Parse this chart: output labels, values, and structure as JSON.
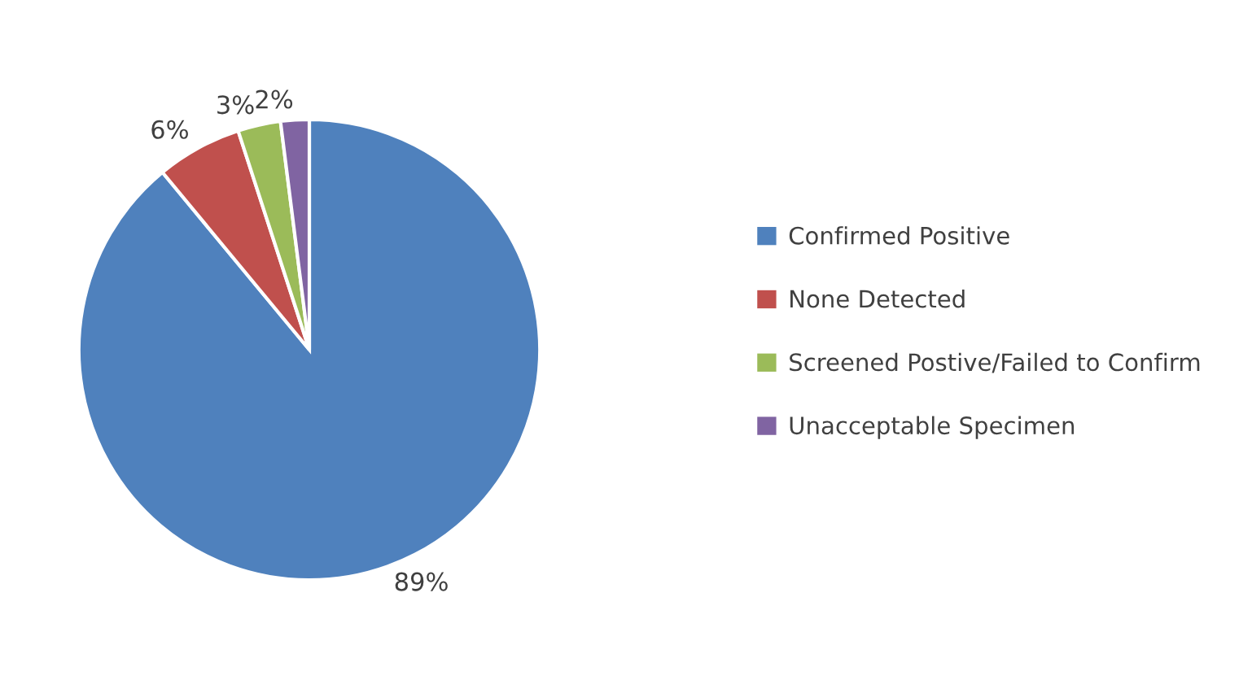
{
  "chart_data": {
    "type": "pie",
    "categories": [
      "Confirmed Positive",
      "None Detected",
      "Screened Postive/Failed to Confirm",
      "Unacceptable Specimen"
    ],
    "values": [
      89,
      6,
      3,
      2
    ],
    "colors": [
      "#4f81bd",
      "#c0504d",
      "#9bbb59",
      "#8064a2"
    ],
    "value_labels": [
      "89%",
      "6%",
      "3%",
      "2%"
    ],
    "legend": "right"
  }
}
